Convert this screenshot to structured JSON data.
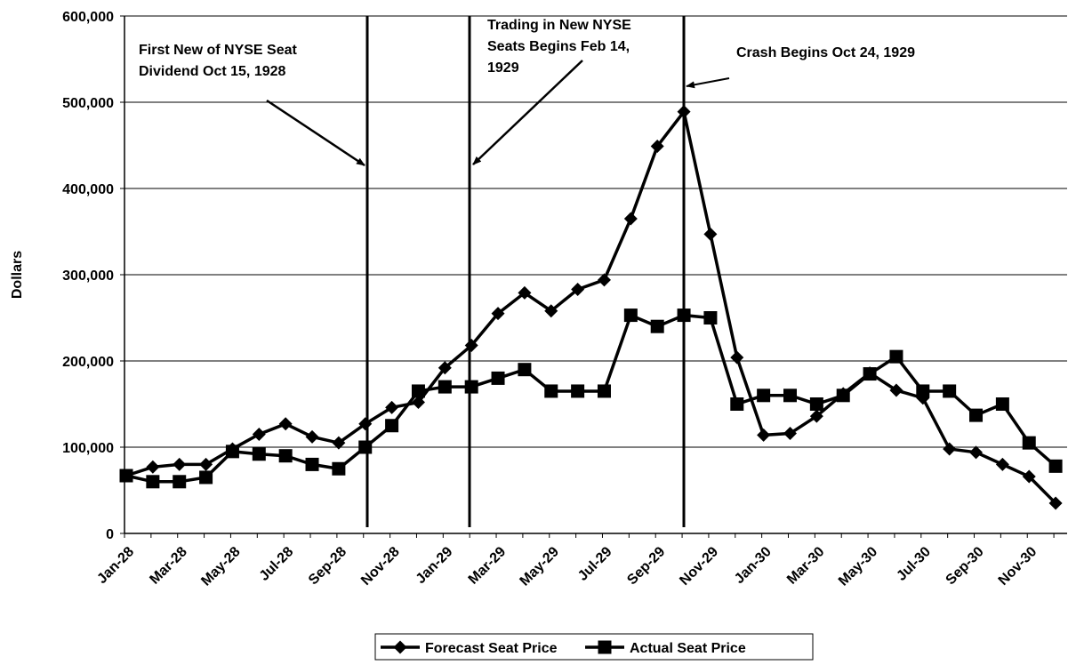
{
  "chart_data": {
    "type": "line",
    "y_label": "Dollars",
    "categories": [
      "Jan-28",
      null,
      "Mar-28",
      null,
      "May-28",
      null,
      "Jul-28",
      null,
      "Sep-28",
      null,
      "Nov-28",
      null,
      "Jan-29",
      null,
      "Mar-29",
      null,
      "May-29",
      null,
      "Jul-29",
      null,
      "Sep-29",
      null,
      "Nov-29",
      null,
      "Jan-30",
      null,
      "Mar-30",
      null,
      "May-30",
      null,
      "Jul-30",
      null,
      "Sep-30",
      null,
      "Nov-30",
      null
    ],
    "series": [
      {
        "name": "Forecast Seat Price",
        "color": "#000000",
        "marker": "diamond",
        "values": [
          67000,
          77000,
          80000,
          80000,
          98000,
          115000,
          127000,
          112000,
          105000,
          127000,
          146000,
          152000,
          192000,
          218000,
          255000,
          279000,
          258000,
          283000,
          294000,
          365000,
          449000,
          489000,
          347000,
          204000,
          114000,
          116000,
          136000,
          162000,
          186000,
          166000,
          157000,
          98000,
          94000,
          80000,
          66000,
          35000
        ]
      },
      {
        "name": "Actual Seat Price",
        "color": "#000000",
        "marker": "square",
        "values": [
          67000,
          60000,
          60000,
          65000,
          95000,
          92000,
          90000,
          80000,
          75000,
          100000,
          125000,
          165000,
          170000,
          170000,
          180000,
          190000,
          165000,
          165000,
          165000,
          253000,
          240000,
          253000,
          250000,
          150000,
          160000,
          160000,
          150000,
          160000,
          185000,
          205000,
          165000,
          165000,
          137000,
          150000,
          105000,
          78000
        ]
      }
    ],
    "ylim": [
      0,
      600000
    ],
    "yticks": [
      0,
      {
        "value": 100000,
        "label": "100,000"
      },
      {
        "value": 200000,
        "label": "200,000"
      },
      {
        "value": 300000,
        "label": "300,000"
      },
      {
        "value": 400000,
        "label": "400,000"
      },
      {
        "value": 500000,
        "label": "500,000"
      },
      {
        "value": 600000,
        "label": "600,000"
      }
    ],
    "grid": true,
    "legend": "bottom",
    "annotations": [
      {
        "text": [
          "First New of NYSE Seat",
          "Dividend Oct 15, 1928"
        ]
      },
      {
        "text": [
          "Trading in New NYSE",
          "Seats Begins Feb 14,",
          "1929"
        ]
      },
      {
        "text": [
          "Crash Begins Oct 24, 1929"
        ]
      }
    ]
  }
}
